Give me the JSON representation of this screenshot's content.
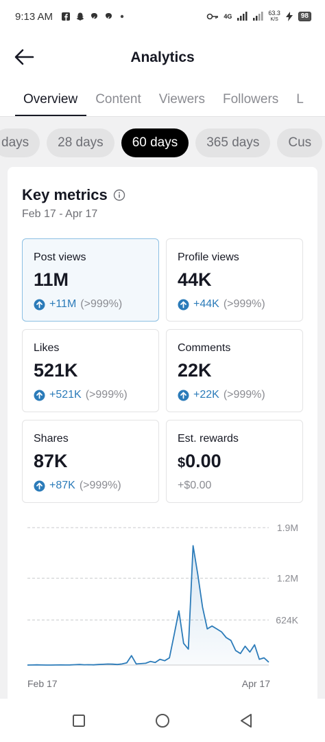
{
  "status_bar": {
    "time": "9:13 AM",
    "left_icons": [
      "facebook-icon",
      "snapchat-icon",
      "notification-app-icon",
      "notification-app-icon"
    ],
    "network": "4G",
    "speed_value": "63.3",
    "speed_unit": "K/S",
    "battery": "98"
  },
  "appbar": {
    "title": "Analytics"
  },
  "tabs": [
    {
      "label": "Overview",
      "active": true
    },
    {
      "label": "Content",
      "active": false
    },
    {
      "label": "Viewers",
      "active": false
    },
    {
      "label": "Followers",
      "active": false
    },
    {
      "label": "L",
      "active": false
    }
  ],
  "ranges": [
    {
      "label": "days",
      "active": false
    },
    {
      "label": "28 days",
      "active": false
    },
    {
      "label": "60 days",
      "active": true
    },
    {
      "label": "365 days",
      "active": false
    },
    {
      "label": "Cus",
      "active": false
    }
  ],
  "key_metrics": {
    "title": "Key metrics",
    "date_range": "Feb 17 - Apr 17",
    "cards": [
      {
        "label": "Post views",
        "value": "11M",
        "delta": "+11M",
        "pct": "(>999%)",
        "selected": true
      },
      {
        "label": "Profile views",
        "value": "44K",
        "delta": "+44K",
        "pct": "(>999%)",
        "selected": false
      },
      {
        "label": "Likes",
        "value": "521K",
        "delta": "+521K",
        "pct": "(>999%)",
        "selected": false
      },
      {
        "label": "Comments",
        "value": "22K",
        "delta": "+22K",
        "pct": "(>999%)",
        "selected": false
      },
      {
        "label": "Shares",
        "value": "87K",
        "delta": "+87K",
        "pct": "(>999%)",
        "selected": false
      },
      {
        "label": "Est. rewards",
        "currency": "$",
        "value": "0.00",
        "delta_plain": "+$0.00",
        "selected": false
      }
    ]
  },
  "chart_data": {
    "type": "area",
    "series_color": "#2b7bb9",
    "y_ticks": [
      "1.9M",
      "1.2M",
      "624K"
    ],
    "y_tick_values": [
      1900000,
      1200000,
      624000
    ],
    "ylim": [
      0,
      1900000
    ],
    "x_labels": [
      "Feb 17",
      "Apr 17"
    ],
    "values": [
      0,
      1000,
      3000,
      1000,
      0,
      0,
      1000,
      2000,
      1000,
      2000,
      5000,
      8000,
      4000,
      5000,
      3000,
      8000,
      10000,
      14000,
      12000,
      8000,
      15000,
      30000,
      130000,
      15000,
      20000,
      25000,
      50000,
      35000,
      80000,
      60000,
      100000,
      420000,
      750000,
      300000,
      220000,
      1650000,
      1250000,
      800000,
      500000,
      540000,
      500000,
      460000,
      380000,
      340000,
      200000,
      160000,
      260000,
      180000,
      280000,
      80000,
      100000,
      40000
    ]
  },
  "nav": {
    "buttons": [
      "recent-apps-icon",
      "home-icon",
      "back-triangle-icon"
    ]
  }
}
